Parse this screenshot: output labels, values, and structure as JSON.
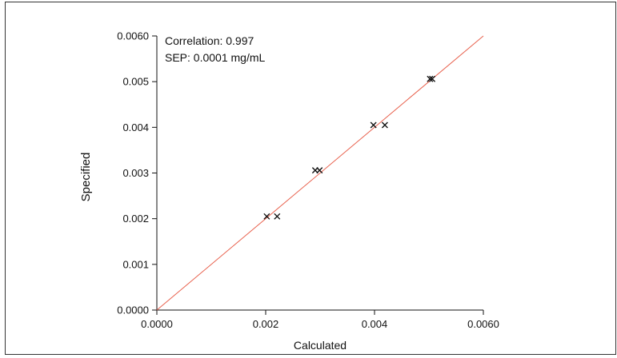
{
  "chart_data": {
    "type": "scatter",
    "xlabel": "Calculated",
    "ylabel": "Specified",
    "xlim": [
      0,
      0.006
    ],
    "ylim": [
      0,
      0.006
    ],
    "x_ticks": [
      0,
      0.002,
      0.004,
      0.006
    ],
    "x_tick_labels": [
      "0.0000",
      "0.002",
      "0.004",
      "0.0060"
    ],
    "y_ticks": [
      0,
      0.001,
      0.002,
      0.003,
      0.004,
      0.005,
      0.006
    ],
    "y_tick_labels": [
      "0.0000",
      "0.001",
      "0.002",
      "0.003",
      "0.004",
      "0.005",
      "0.0060"
    ],
    "grid": false,
    "annotations": [
      "Correlation: 0.997",
      "SEP: 0.0001 mg/mL"
    ],
    "marker": "x",
    "marker_color": "#111111",
    "line_color": "#e8604c",
    "series": [
      {
        "marker": "x",
        "points": [
          {
            "x": 0.00202,
            "y": 0.00205
          },
          {
            "x": 0.00221,
            "y": 0.00205
          },
          {
            "x": 0.00291,
            "y": 0.00306
          },
          {
            "x": 0.00299,
            "y": 0.00306
          },
          {
            "x": 0.00398,
            "y": 0.00405
          },
          {
            "x": 0.00419,
            "y": 0.00405
          },
          {
            "x": 0.00502,
            "y": 0.00506
          },
          {
            "x": 0.00506,
            "y": 0.00506
          }
        ]
      }
    ],
    "fit_line": {
      "x": [
        0,
        0.006
      ],
      "y": [
        0,
        0.006
      ]
    }
  }
}
